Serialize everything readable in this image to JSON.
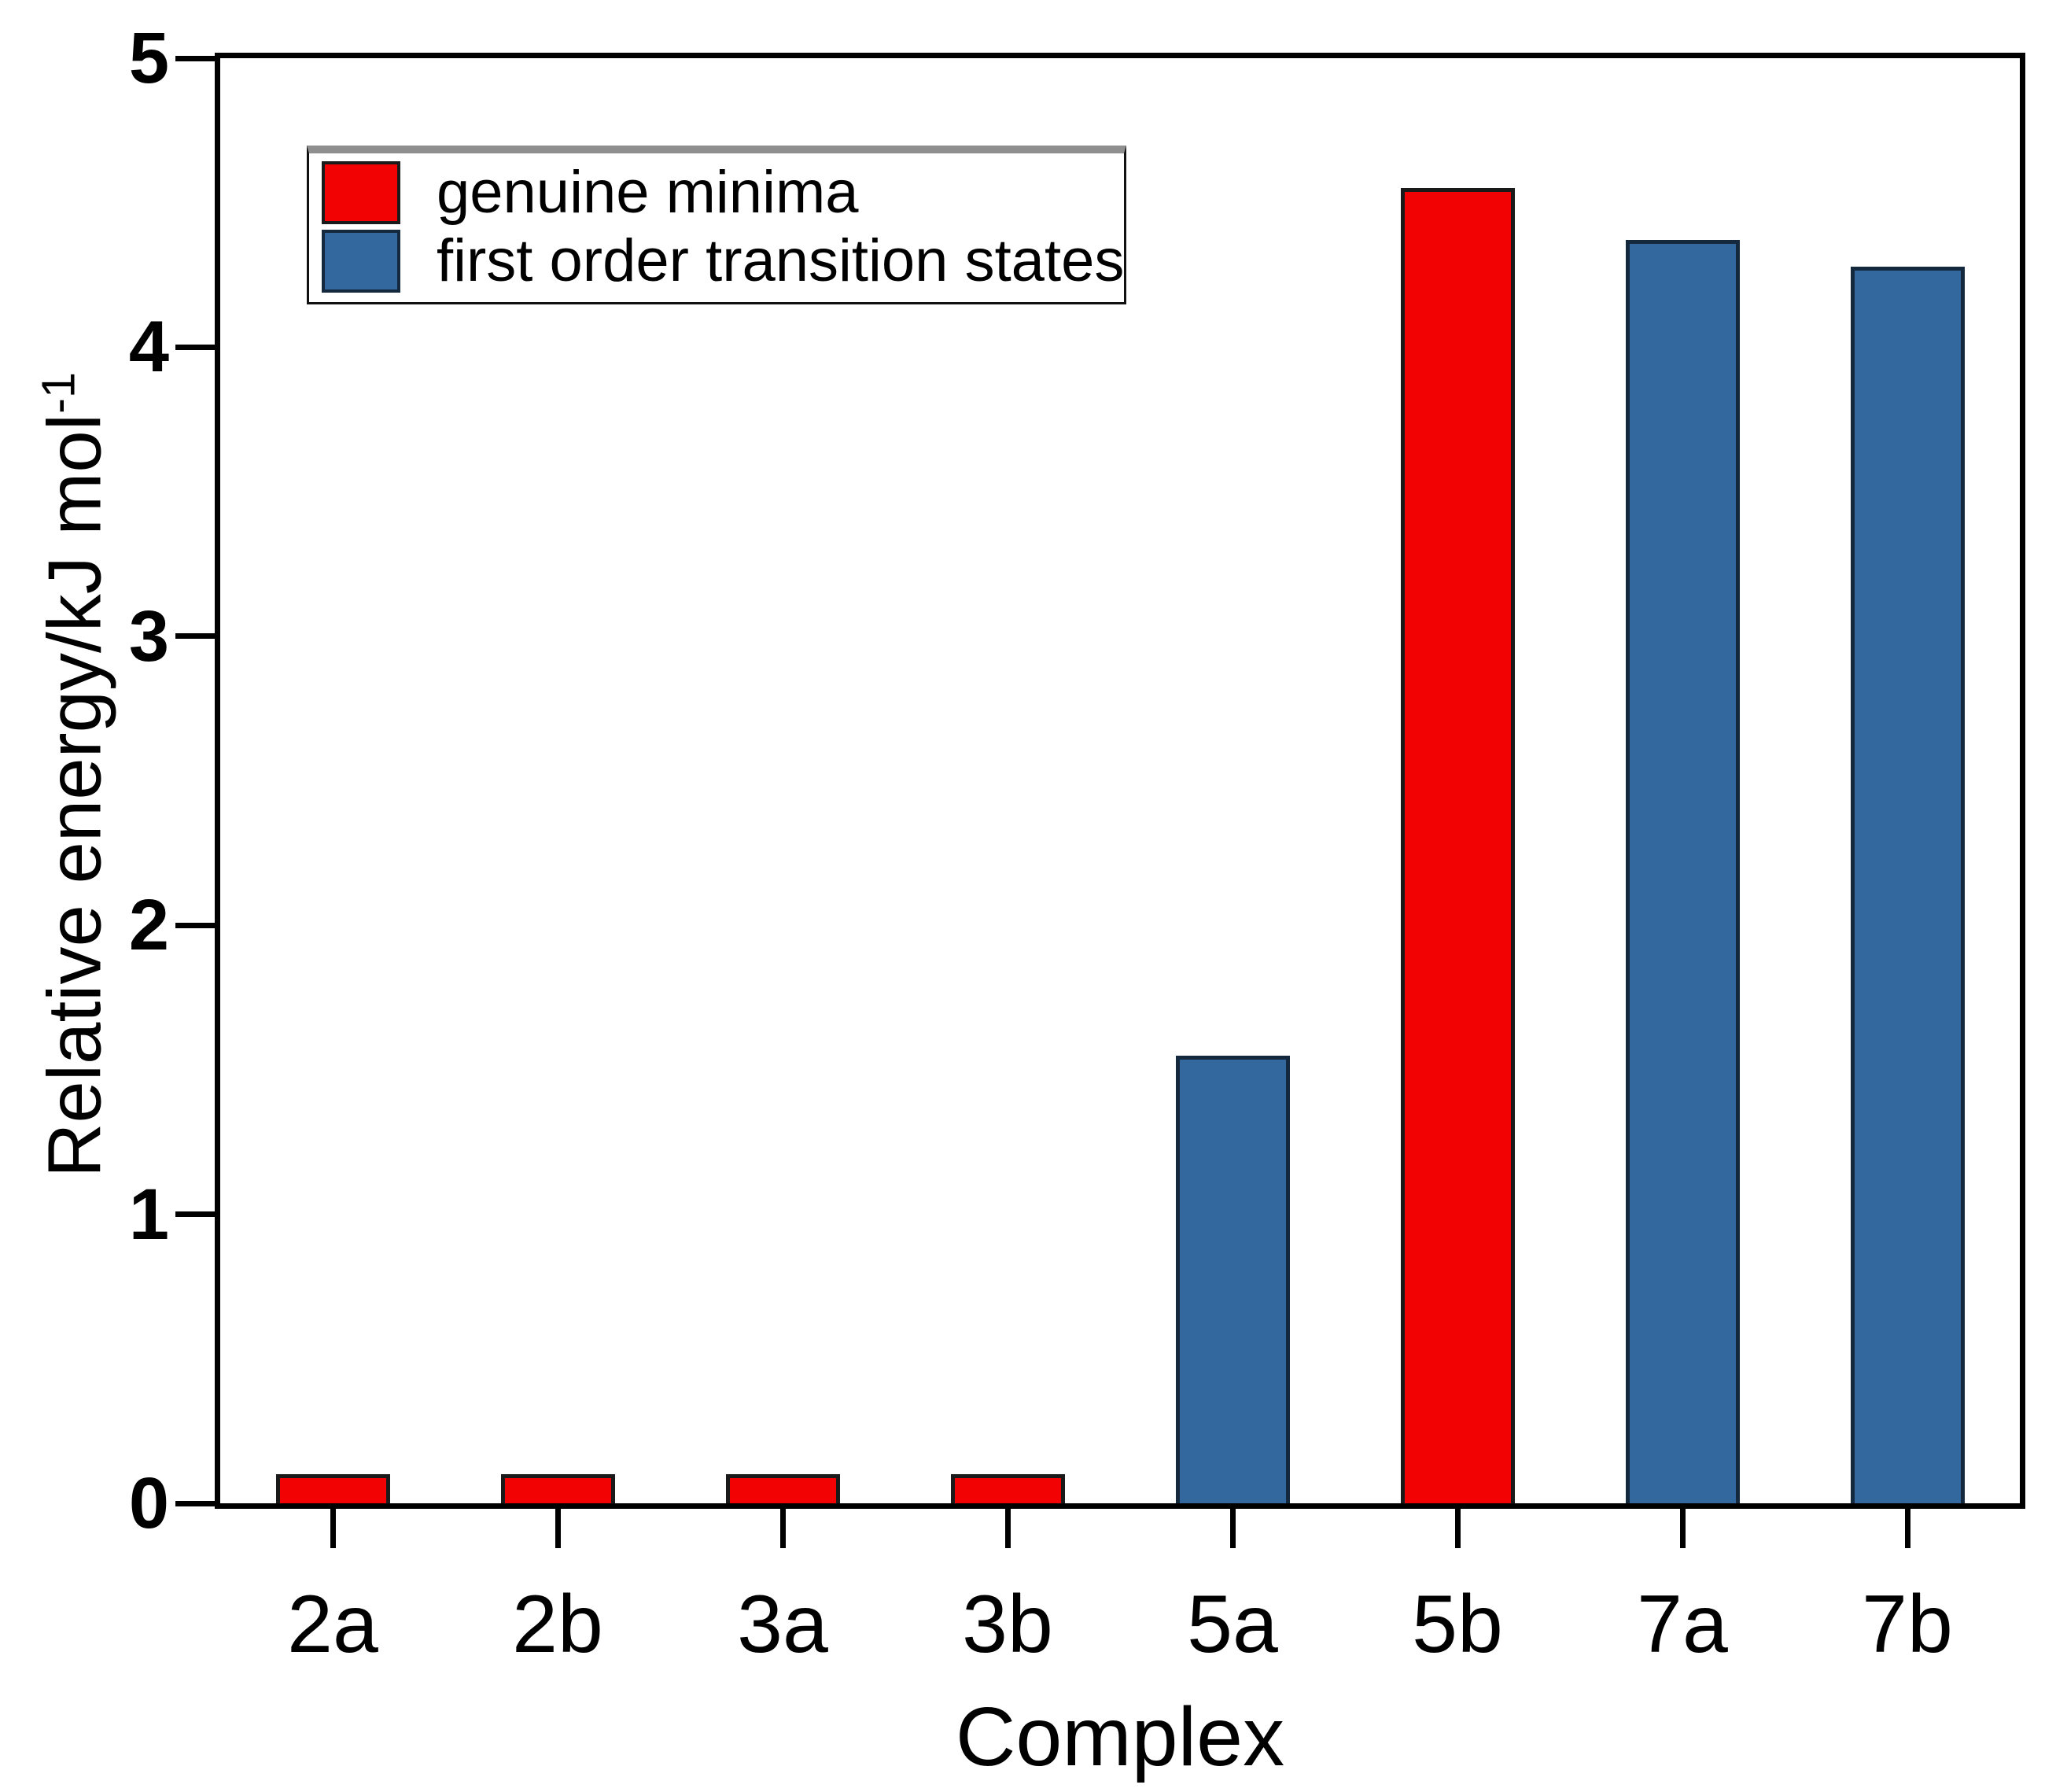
{
  "chart_data": {
    "type": "bar",
    "title": "",
    "xlabel": "Complex",
    "ylabel": "Relative energy/kJ mol⁻¹",
    "ylabel_main": "Relative energy/kJ mol",
    "ylabel_sup": "-1",
    "ylim": [
      0,
      5
    ],
    "yticks": [
      0,
      1,
      2,
      3,
      4,
      5
    ],
    "grid": false,
    "categories": [
      "2a",
      "2b",
      "3a",
      "3b",
      "5a",
      "5b",
      "7a",
      "7b"
    ],
    "values": [
      0.1,
      0.1,
      0.1,
      0.1,
      1.55,
      4.55,
      4.37,
      4.28
    ],
    "series_by_bar": [
      "minima",
      "minima",
      "minima",
      "minima",
      "ts",
      "minima",
      "ts",
      "ts"
    ],
    "series": {
      "minima": {
        "label": "genuine minima",
        "fill": "#f20202",
        "border": "#1a1a1a"
      },
      "ts": {
        "label": "first order transition states",
        "fill": "#33689e",
        "border": "#14293e"
      }
    },
    "legend": {
      "position": "top-left",
      "order": [
        "minima",
        "ts"
      ]
    }
  }
}
